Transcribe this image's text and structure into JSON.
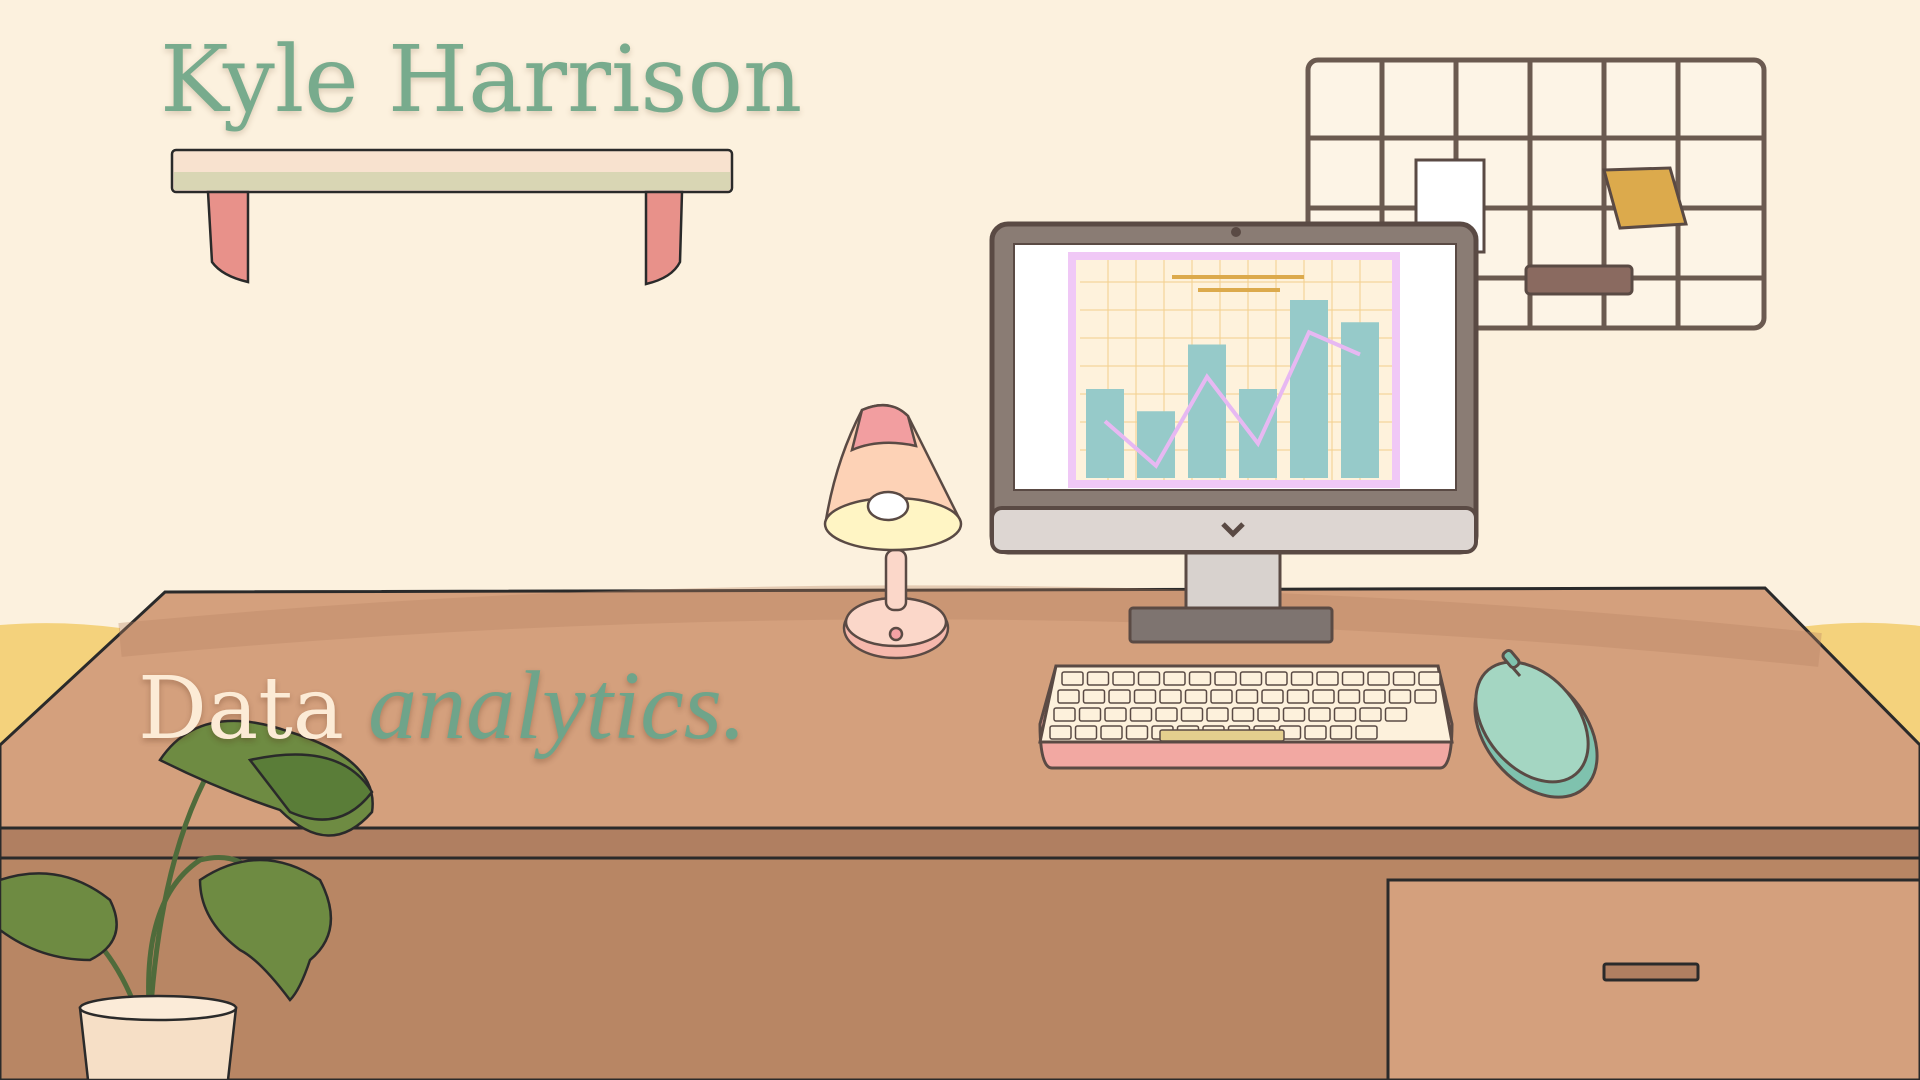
{
  "header": {
    "name": "Kyle Harrison"
  },
  "tagline": {
    "word_plain": "Data",
    "word_script": "analytics."
  },
  "screen_chart": {
    "type": "bar",
    "values": [
      4,
      3,
      6,
      4,
      8,
      7
    ],
    "line": [
      3,
      1,
      5,
      2,
      7,
      6
    ]
  },
  "colors": {
    "wall": "#fcf1de",
    "desk": "#d4a07d",
    "accent_green": "#78ab8d",
    "bars": "#96cac9",
    "chart_frame": "#f0c8f6"
  }
}
